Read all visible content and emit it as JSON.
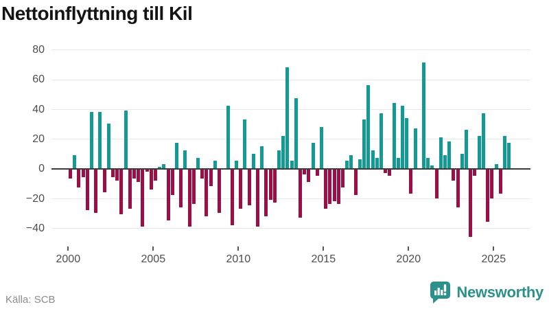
{
  "title": "Nettoinflyttning till Kil",
  "source_label": "Källa: SCB",
  "logo": {
    "text": "Newsworthy"
  },
  "colors": {
    "positive_bar": "#149a94",
    "negative_bar": "#9b0e46",
    "zero_axis": "#3c3c3c",
    "gridline": "#e7e7e7",
    "axis_text": "#4d4d4d",
    "source_text": "#8c8c8c",
    "logo_teal": "#2d918b"
  },
  "chart_data": {
    "type": "bar",
    "title": "Nettoinflyttning till Kil",
    "frequency": "quarterly",
    "start": "2000-Q1",
    "end": "2025-Q4",
    "xlabel": "",
    "ylabel": "",
    "grid": true,
    "ylim": [
      -50,
      88
    ],
    "yticks": [
      80,
      60,
      40,
      20,
      0,
      -20,
      -40
    ],
    "xticks": [
      2000,
      2005,
      2010,
      2015,
      2020,
      2025
    ],
    "values": [
      -6,
      9,
      -12,
      -5,
      -27,
      38,
      -29,
      38,
      -15,
      30,
      -5,
      -7,
      -30,
      39,
      -26,
      -6,
      -8,
      -38,
      -1,
      -13,
      -7,
      1,
      3,
      -34,
      -17,
      17,
      -25,
      12,
      -38,
      -23,
      7,
      -6,
      -31,
      -11,
      5,
      -29,
      0,
      42,
      -37,
      5,
      -26,
      33,
      -24,
      10,
      -38,
      15,
      -31,
      -20,
      -22,
      12,
      22,
      68,
      5,
      47,
      -32,
      -3,
      -8,
      17,
      -4,
      28,
      -26,
      -23,
      -21,
      -23,
      -12,
      5,
      9,
      -17,
      6,
      33,
      56,
      12,
      7,
      37,
      -2,
      -4,
      44,
      7,
      42,
      34,
      -16,
      27,
      0,
      71,
      7,
      2,
      -19,
      21,
      9,
      18,
      -7,
      -25,
      10,
      26,
      -45,
      -4,
      22,
      37,
      -35,
      -19,
      3,
      -16,
      22,
      17
    ]
  }
}
